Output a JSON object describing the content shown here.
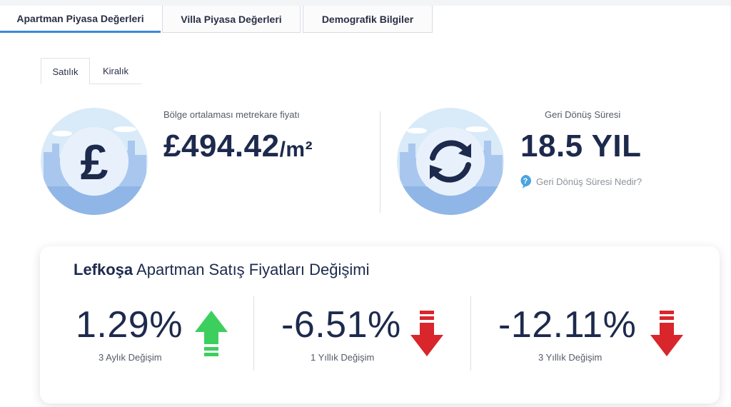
{
  "main_tabs": [
    {
      "label": "Apartman Piyasa Değerleri",
      "active": true
    },
    {
      "label": "Villa Piyasa Değerleri",
      "active": false
    },
    {
      "label": "Demografik Bilgiler",
      "active": false
    }
  ],
  "sub_tabs": [
    {
      "label": "Satılık",
      "active": true
    },
    {
      "label": "Kiralık",
      "active": false
    }
  ],
  "price_stat": {
    "label": "Bölge ortalaması metrekare fiyatı",
    "value": "£494.42",
    "unit": "/m²",
    "icon": "pound-icon"
  },
  "return_stat": {
    "label": "Geri Dönüş Süresi",
    "value": "18.5 YIL",
    "help_text": "Geri Dönüş Süresi Nedir?",
    "icon": "refresh-icon"
  },
  "change_card": {
    "title_bold": "Lefkoşa",
    "title_rest": " Apartman Satış Fiyatları Değişimi",
    "metrics": [
      {
        "value": "1.29%",
        "label": "3 Aylık Değişim",
        "direction": "up"
      },
      {
        "value": "-6.51%",
        "label": "1 Yıllık Değişim",
        "direction": "down"
      },
      {
        "value": "-12.11%",
        "label": "3 Yıllık Değişim",
        "direction": "down"
      }
    ]
  },
  "colors": {
    "accent": "#3a8ad6",
    "navy": "#1d2a4d",
    "up": "#3ccf5e",
    "down": "#d9252c",
    "circle_sky": "#d9eaf8",
    "circle_city": "#8fb6e6"
  }
}
